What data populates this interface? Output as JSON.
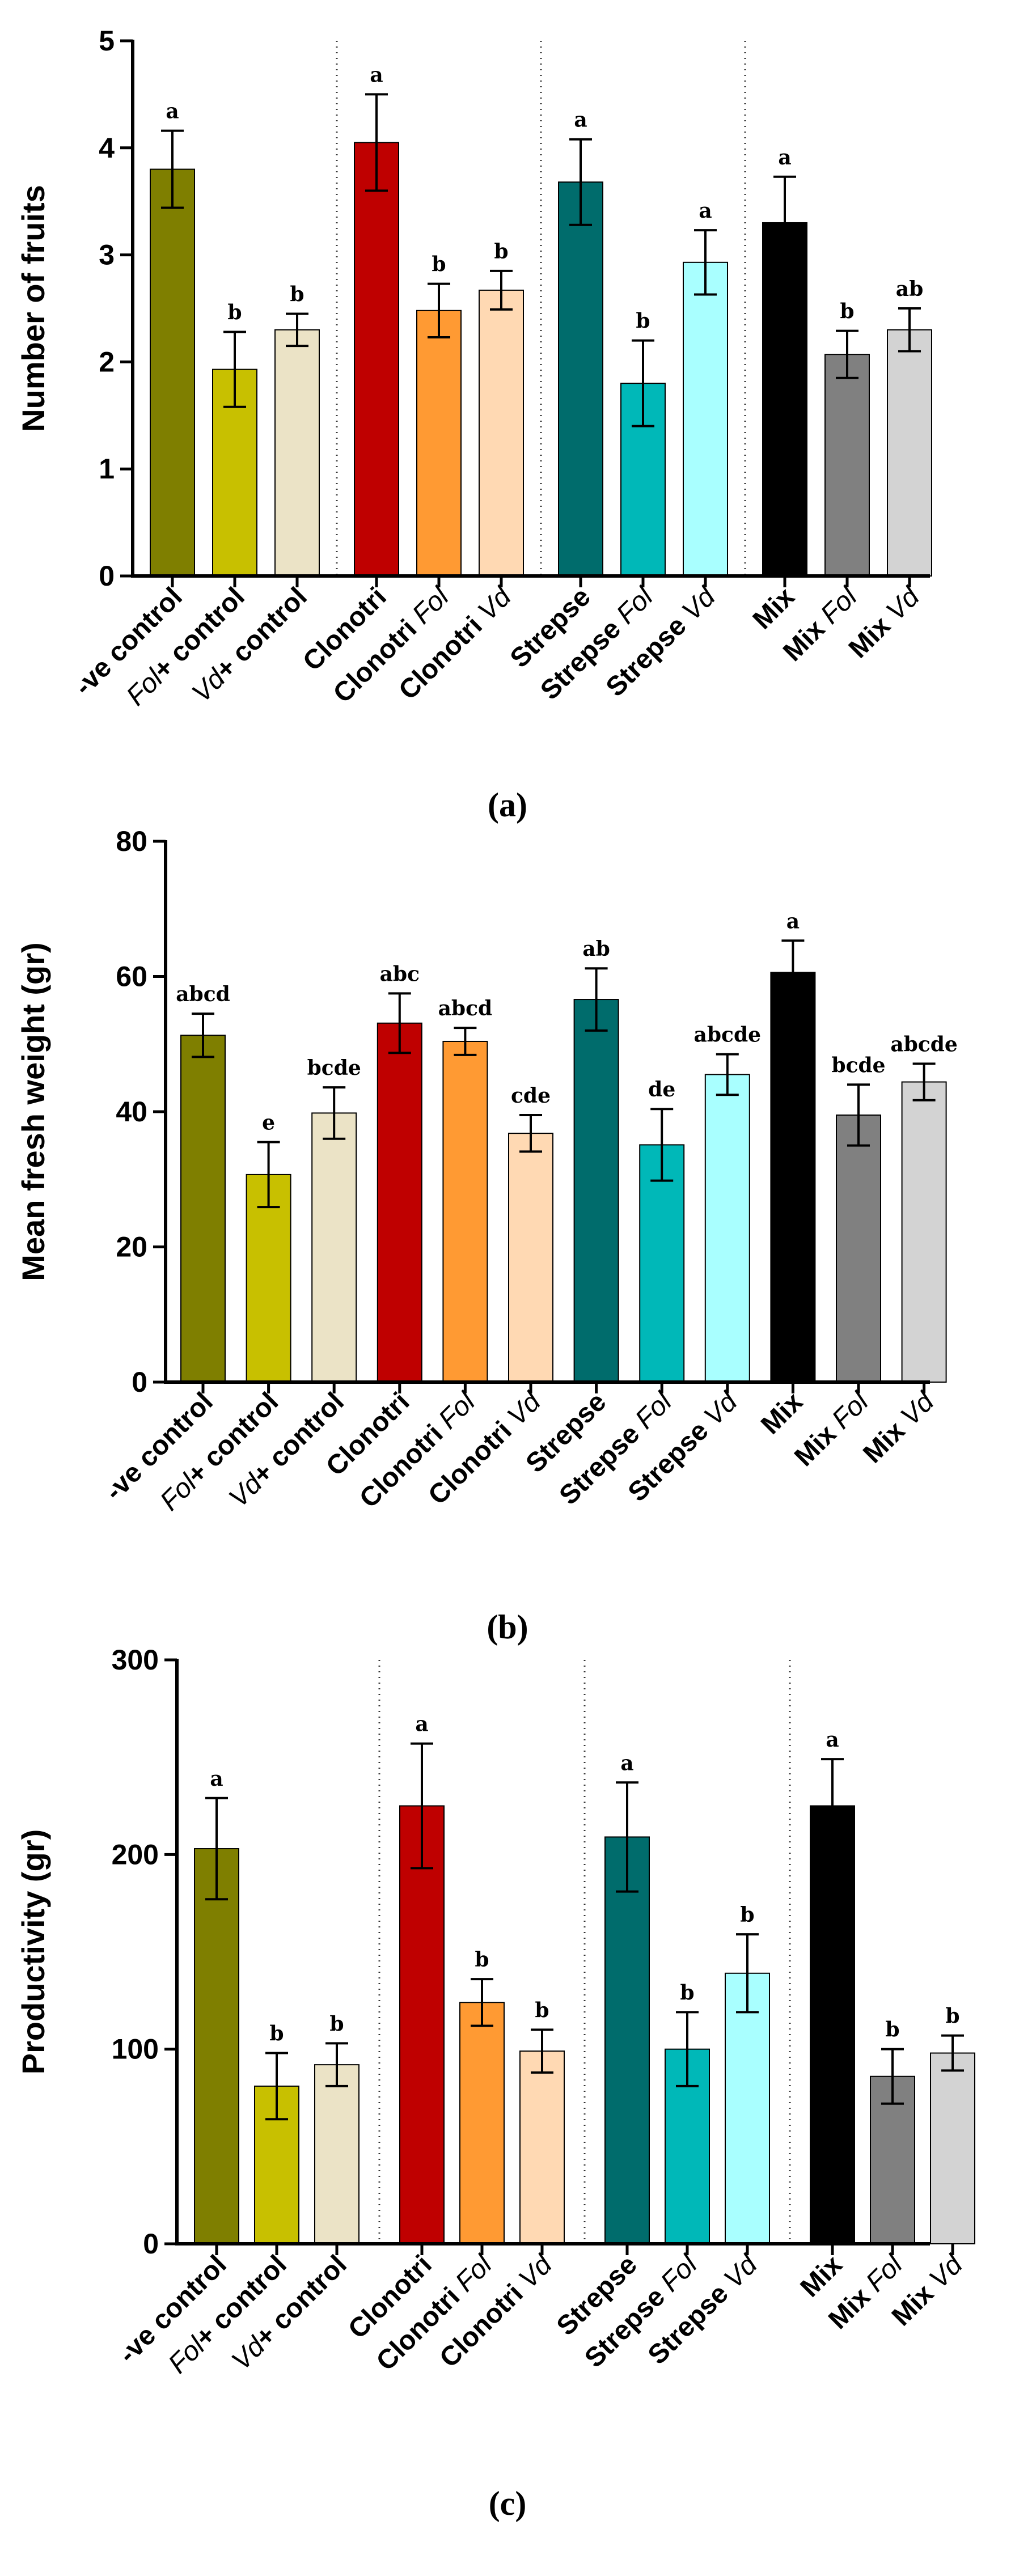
{
  "chart_data": [
    {
      "type": "bar",
      "panel": "(a)",
      "ylabel": "Number of fruits",
      "ylim": [
        0,
        5
      ],
      "yticks": [
        0,
        1,
        2,
        3,
        4,
        5
      ],
      "grouped": true,
      "categories": [
        [
          {
            "t": "-ve control"
          }
        ],
        [
          {
            "t": "Fol",
            "i": true
          },
          {
            "t": "+ control"
          }
        ],
        [
          {
            "t": "Vd",
            "i": true
          },
          {
            "t": "+ control"
          }
        ],
        [
          {
            "t": "Clonotri"
          }
        ],
        [
          {
            "t": "Clonotri "
          },
          {
            "t": "Fol",
            "i": true
          }
        ],
        [
          {
            "t": "Clonotri "
          },
          {
            "t": "Vd",
            "i": true
          }
        ],
        [
          {
            "t": "Strepse"
          }
        ],
        [
          {
            "t": "Strepse "
          },
          {
            "t": "Fol",
            "i": true
          }
        ],
        [
          {
            "t": "Strepse "
          },
          {
            "t": "Vd",
            "i": true
          }
        ],
        [
          {
            "t": "Mix"
          }
        ],
        [
          {
            "t": "Mix "
          },
          {
            "t": "Fol",
            "i": true
          }
        ],
        [
          {
            "t": "Mix "
          },
          {
            "t": "Vd",
            "i": true
          }
        ]
      ],
      "values": [
        3.8,
        1.93,
        2.3,
        4.05,
        2.48,
        2.67,
        3.68,
        1.8,
        2.93,
        3.3,
        2.07,
        2.3
      ],
      "errors": [
        0.36,
        0.35,
        0.15,
        0.45,
        0.25,
        0.18,
        0.4,
        0.4,
        0.3,
        0.43,
        0.22,
        0.2
      ],
      "letters": [
        "a",
        "b",
        "b",
        "a",
        "b",
        "b",
        "a",
        "b",
        "a",
        "a",
        "b",
        "ab"
      ],
      "colors": [
        "#7f7f00",
        "#c8c000",
        "#ebe3c6",
        "#bf0000",
        "#ff9a33",
        "#ffd9b3",
        "#006c6c",
        "#00b8b8",
        "#a9ffff",
        "#000000",
        "#808080",
        "#d3d3d3"
      ]
    },
    {
      "type": "bar",
      "panel": "(b)",
      "ylabel": "Mean fresh weight (gr)",
      "ylim": [
        0,
        80
      ],
      "yticks": [
        0,
        20,
        40,
        60,
        80
      ],
      "grouped": false,
      "categories": [
        [
          {
            "t": "-ve control"
          }
        ],
        [
          {
            "t": "Fol",
            "i": true
          },
          {
            "t": "+ control"
          }
        ],
        [
          {
            "t": "Vd",
            "i": true
          },
          {
            "t": "+ control"
          }
        ],
        [
          {
            "t": "Clonotri"
          }
        ],
        [
          {
            "t": "Clonotri "
          },
          {
            "t": "Fol",
            "i": true
          }
        ],
        [
          {
            "t": "Clonotri "
          },
          {
            "t": "Vd",
            "i": true
          }
        ],
        [
          {
            "t": "Strepse"
          }
        ],
        [
          {
            "t": "Strepse "
          },
          {
            "t": "Fol",
            "i": true
          }
        ],
        [
          {
            "t": "Strepse "
          },
          {
            "t": "Vd",
            "i": true
          }
        ],
        [
          {
            "t": "Mix"
          }
        ],
        [
          {
            "t": "Mix "
          },
          {
            "t": "Fol",
            "i": true
          }
        ],
        [
          {
            "t": "Mix "
          },
          {
            "t": "Vd",
            "i": true
          }
        ]
      ],
      "values": [
        51.3,
        30.7,
        39.8,
        53.1,
        50.4,
        36.8,
        56.6,
        35.1,
        45.5,
        60.6,
        39.5,
        44.4
      ],
      "errors": [
        3.2,
        4.8,
        3.8,
        4.4,
        2.0,
        2.7,
        4.6,
        5.3,
        3.0,
        4.7,
        4.5,
        2.7
      ],
      "letters": [
        "abcd",
        "e",
        "bcde",
        "abc",
        "abcd",
        "cde",
        "ab",
        "de",
        "abcde",
        "a",
        "bcde",
        "abcde"
      ],
      "colors": [
        "#7f7f00",
        "#c8c000",
        "#ebe3c6",
        "#bf0000",
        "#ff9a33",
        "#ffd9b3",
        "#006c6c",
        "#00b8b8",
        "#a9ffff",
        "#000000",
        "#808080",
        "#d3d3d3"
      ]
    },
    {
      "type": "bar",
      "panel": "(c)",
      "ylabel": "Productivity (gr)",
      "ylim": [
        0,
        300
      ],
      "yticks": [
        0,
        100,
        200,
        300
      ],
      "grouped": true,
      "categories": [
        [
          {
            "t": "-ve control"
          }
        ],
        [
          {
            "t": "Fol",
            "i": true
          },
          {
            "t": "+ control"
          }
        ],
        [
          {
            "t": "Vd",
            "i": true
          },
          {
            "t": "+ control"
          }
        ],
        [
          {
            "t": "Clonotri"
          }
        ],
        [
          {
            "t": "Clonotri "
          },
          {
            "t": "Fol",
            "i": true
          }
        ],
        [
          {
            "t": "Clonotri "
          },
          {
            "t": "Vd",
            "i": true
          }
        ],
        [
          {
            "t": "Strepse"
          }
        ],
        [
          {
            "t": "Strepse "
          },
          {
            "t": "Fol",
            "i": true
          }
        ],
        [
          {
            "t": "Strepse "
          },
          {
            "t": "Vd",
            "i": true
          }
        ],
        [
          {
            "t": "Mix"
          }
        ],
        [
          {
            "t": "Mix "
          },
          {
            "t": "Fol",
            "i": true
          }
        ],
        [
          {
            "t": "Mix "
          },
          {
            "t": "Vd",
            "i": true
          }
        ]
      ],
      "values": [
        203,
        81,
        92,
        225,
        124,
        99,
        209,
        100,
        139,
        225,
        86,
        98
      ],
      "errors": [
        26,
        17,
        11,
        32,
        12,
        11,
        28,
        19,
        20,
        24,
        14,
        9
      ],
      "letters": [
        "a",
        "b",
        "b",
        "a",
        "b",
        "b",
        "a",
        "b",
        "b",
        "a",
        "b",
        "b"
      ],
      "colors": [
        "#7f7f00",
        "#c8c000",
        "#ebe3c6",
        "#bf0000",
        "#ff9a33",
        "#ffd9b3",
        "#006c6c",
        "#00b8b8",
        "#a9ffff",
        "#000000",
        "#808080",
        "#d3d3d3"
      ]
    }
  ]
}
